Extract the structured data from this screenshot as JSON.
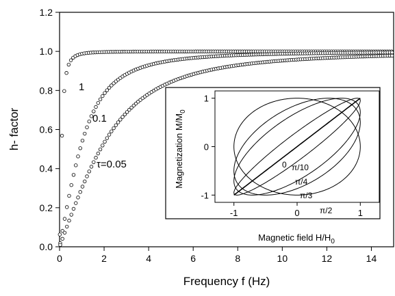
{
  "chart_data": [
    {
      "type": "scatter",
      "xlabel": "Frequency f (Hz)",
      "ylabel": "h- factor",
      "xlim": [
        0,
        15
      ],
      "ylim": [
        0,
        1.2
      ],
      "xticks": [
        "0",
        "2",
        "4",
        "6",
        "8",
        "10",
        "12",
        "14"
      ],
      "yticks": [
        "0.0",
        "0.2",
        "0.4",
        "0.6",
        "0.8",
        "1.0",
        "1.2"
      ],
      "grid": false,
      "legend": "none",
      "marker": "open-circle",
      "series": [
        {
          "label": "1",
          "tau": 1,
          "x_start": 0.01,
          "x_end": 15.0,
          "step": 0.1,
          "x_sample": [
            0.01,
            0.1,
            0.2,
            0.3,
            0.5,
            0.8,
            1.0,
            2.0,
            5.0,
            15.0
          ],
          "y_sample": [
            0.3,
            0.53,
            0.78,
            0.87,
            0.93,
            0.98,
            0.99,
            1.0,
            1.0,
            1.0
          ]
        },
        {
          "label": "0.1",
          "tau": 0.1,
          "x_start": 0.03,
          "x_end": 15.0,
          "step": 0.1,
          "x_sample": [
            0.05,
            0.5,
            1.0,
            2.0,
            4.0,
            6.0,
            10.0,
            15.0
          ],
          "y_sample": [
            0.03,
            0.3,
            0.53,
            0.78,
            0.92,
            0.96,
            0.98,
            0.99
          ]
        },
        {
          "label": "τ=0.05",
          "tau": 0.05,
          "x_start": 0.03,
          "x_end": 15.0,
          "step": 0.1,
          "x_sample": [
            0.05,
            1.0,
            2.0,
            4.0,
            6.0,
            10.0,
            15.0
          ],
          "y_sample": [
            0.02,
            0.3,
            0.53,
            0.78,
            0.87,
            0.94,
            0.97
          ]
        }
      ]
    },
    {
      "type": "line",
      "inset": true,
      "xlabel": "Magnetic field H/H",
      "xlabel_sub": "0",
      "ylabel": "Magnetization M/M",
      "ylabel_sub": "0",
      "xlim": [
        -1.3,
        1.3
      ],
      "ylim": [
        -1.15,
        1.15
      ],
      "xticks": [
        "-1",
        "0",
        "1"
      ],
      "yticks": [
        "-1",
        "0",
        "1"
      ],
      "curves": [
        {
          "label": "0",
          "phase": 0
        },
        {
          "label": "π/10",
          "phase": 0.3142
        },
        {
          "label": "π/4",
          "phase": 0.7854
        },
        {
          "label": "π/3",
          "phase": 1.0472
        },
        {
          "label": "π/2",
          "phase": 1.5708
        }
      ]
    }
  ]
}
